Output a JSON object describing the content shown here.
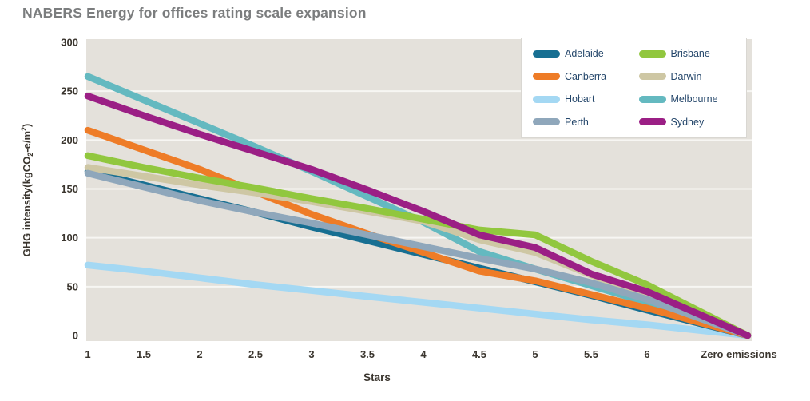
{
  "page": {
    "title": "NABERS Energy for offices rating scale expansion"
  },
  "chart_data": {
    "type": "line",
    "title": "NABERS Energy for offices rating scale expansion",
    "xlabel": "Stars",
    "ylabel": "GHG intensity(kgCO₂-e/m²)",
    "ylim": [
      0,
      300
    ],
    "ytick_step": 50,
    "ytick_labels": [
      "0",
      "50",
      "100",
      "150",
      "200",
      "250",
      "300"
    ],
    "categories": [
      "1",
      "1.5",
      "2",
      "2.5",
      "3",
      "3.5",
      "4",
      "4.5",
      "5",
      "5.5",
      "6",
      "Zero emissions"
    ],
    "grid": "horizontal white gridlines on grey plot background",
    "legend_position": "top-right inside plot, white box, 2 columns",
    "plot_bg_color": "#e4e1db",
    "gridline_color": "#f7f6f3",
    "title_color": "#7b7d7e",
    "tick_label_color": "#3b362f",
    "legend_text_color": "#25476b",
    "series": [
      {
        "name": "Adelaide",
        "color": "#176f92",
        "values": [
          168,
          154,
          140,
          126,
          111,
          97,
          83,
          69,
          55,
          41,
          26,
          0
        ]
      },
      {
        "name": "Brisbane",
        "color": "#91c73e",
        "values": [
          184,
          172,
          161,
          151,
          140,
          130,
          119,
          108,
          103,
          76,
          52,
          0
        ]
      },
      {
        "name": "Canberra",
        "color": "#ee7c27",
        "values": [
          210,
          190,
          170,
          147,
          124,
          104,
          85,
          66,
          56,
          42,
          28,
          0
        ]
      },
      {
        "name": "Darwin",
        "color": "#cec7a4",
        "values": [
          172,
          163,
          154,
          146,
          137,
          127,
          117,
          98,
          85,
          62,
          40,
          0
        ]
      },
      {
        "name": "Hobart",
        "color": "#a4d8f3",
        "values": [
          72,
          66,
          59,
          52,
          46,
          40,
          34,
          28,
          22,
          16,
          11,
          0
        ]
      },
      {
        "name": "Melbourne",
        "color": "#64b9c0",
        "values": [
          265,
          241,
          217,
          193,
          168,
          142,
          116,
          86,
          68,
          51,
          34,
          0
        ]
      },
      {
        "name": "Perth",
        "color": "#8fa7bb",
        "values": [
          166,
          152,
          138,
          126,
          115,
          103,
          91,
          79,
          68,
          54,
          37,
          0
        ]
      },
      {
        "name": "Sydney",
        "color": "#9b1f85",
        "values": [
          245,
          225,
          206,
          188,
          170,
          149,
          127,
          103,
          90,
          63,
          45,
          0
        ]
      }
    ]
  }
}
